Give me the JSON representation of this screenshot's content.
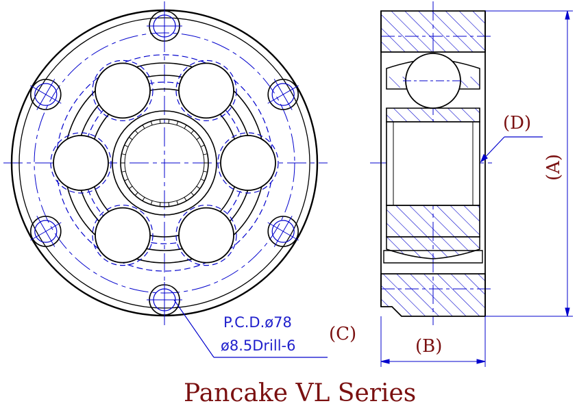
{
  "title": "Pancake VL Series",
  "labels": {
    "A": "(A)",
    "B": "(B)",
    "C": "(C)",
    "D": "(D)"
  },
  "callout": {
    "line1": "P.C.D.ø78",
    "line2": "ø8.5Drill-6"
  },
  "colors": {
    "outline": "#000000",
    "centerline": "#0000cc",
    "hatch": "#0000cc",
    "dimension": "#0000cc",
    "label_text": "#7a1010",
    "callout_text": "#2020cc"
  }
}
